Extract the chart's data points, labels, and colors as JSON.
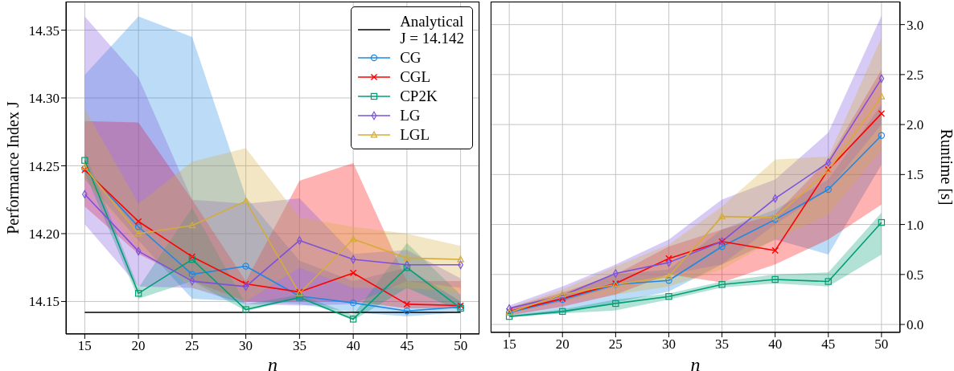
{
  "chart_data": [
    {
      "type": "line",
      "xlabel": "n",
      "ylabel": "Performance Index J",
      "x": [
        15,
        20,
        25,
        30,
        35,
        40,
        45,
        50
      ],
      "xlim": [
        13.25,
        51.75
      ],
      "xticks": [
        15,
        20,
        25,
        30,
        35,
        40,
        45,
        50
      ],
      "ylim": [
        14.126,
        14.371
      ],
      "yticks": [
        {
          "value": 14.15,
          "label": "14.15"
        },
        {
          "value": 14.2,
          "label": "14.20"
        },
        {
          "value": 14.25,
          "label": "14.25"
        },
        {
          "value": 14.3,
          "label": "14.30"
        },
        {
          "value": 14.35,
          "label": "14.35"
        }
      ],
      "grid": true,
      "legend": "top right",
      "series": [
        {
          "name": "Analytical\nJ = 14.142",
          "color": "#000000",
          "marker": "none",
          "values": [
            14.142,
            14.142,
            14.142,
            14.142,
            14.142,
            14.142,
            14.142,
            14.142
          ]
        },
        {
          "name": "CG",
          "color": "#1e88e5",
          "marker": "circle",
          "values": [
            14.248,
            14.205,
            14.17,
            14.176,
            14.154,
            14.149,
            14.143,
            14.146
          ],
          "lower": [
            14.24,
            14.195,
            14.152,
            14.15,
            14.148,
            14.142,
            14.139,
            14.142
          ],
          "upper": [
            14.317,
            14.36,
            14.345,
            14.227,
            14.18,
            14.165,
            14.175,
            14.15
          ]
        },
        {
          "name": "CGL",
          "color": "#ff0000",
          "marker": "cross",
          "values": [
            14.247,
            14.209,
            14.183,
            14.163,
            14.157,
            14.171,
            14.148,
            14.147
          ],
          "lower": [
            14.22,
            14.185,
            14.165,
            14.15,
            14.15,
            14.15,
            14.145,
            14.145
          ],
          "upper": [
            14.283,
            14.282,
            14.225,
            14.165,
            14.239,
            14.252,
            14.165,
            14.165
          ]
        },
        {
          "name": "CP2K",
          "color": "#009e73",
          "marker": "square",
          "values": [
            14.254,
            14.156,
            14.181,
            14.144,
            14.153,
            14.137,
            14.175,
            14.145
          ],
          "lower": [
            14.245,
            14.152,
            14.165,
            14.143,
            14.152,
            14.136,
            14.16,
            14.143
          ],
          "upper": [
            14.26,
            14.16,
            14.219,
            14.148,
            14.155,
            14.14,
            14.193,
            14.155
          ]
        },
        {
          "name": "LG",
          "color": "#7b52dd",
          "marker": "diamond",
          "values": [
            14.229,
            14.187,
            14.165,
            14.161,
            14.195,
            14.181,
            14.177,
            14.177
          ],
          "lower": [
            14.207,
            14.161,
            14.16,
            14.148,
            14.147,
            14.148,
            14.165,
            14.16
          ],
          "upper": [
            14.36,
            14.315,
            14.225,
            14.222,
            14.226,
            14.185,
            14.188,
            14.167
          ]
        },
        {
          "name": "LGL",
          "color": "#d4ac3a",
          "marker": "triangle",
          "values": [
            14.249,
            14.2,
            14.206,
            14.224,
            14.156,
            14.196,
            14.182,
            14.181
          ],
          "lower": [
            14.24,
            14.19,
            14.16,
            14.15,
            14.175,
            14.16,
            14.16,
            14.157
          ],
          "upper": [
            14.292,
            14.222,
            14.253,
            14.263,
            14.212,
            14.205,
            14.2,
            14.191
          ]
        }
      ]
    },
    {
      "type": "line",
      "xlabel": "n",
      "y2label": "Runtime [s]",
      "x": [
        15,
        20,
        25,
        30,
        35,
        40,
        45,
        50
      ],
      "xlim": [
        13.25,
        51.75
      ],
      "xticks": [
        15,
        20,
        25,
        30,
        35,
        40,
        45,
        50
      ],
      "y2lim": [
        -0.08,
        3.23
      ],
      "y2ticks": [
        {
          "value": 0,
          "label": "0.0"
        },
        {
          "value": 0.5,
          "label": "0.5"
        },
        {
          "value": 1,
          "label": "1.0"
        },
        {
          "value": 1.5,
          "label": "1.5"
        },
        {
          "value": 2,
          "label": "2.0"
        },
        {
          "value": 2.5,
          "label": "2.5"
        },
        {
          "value": 3,
          "label": "3.0"
        }
      ],
      "grid": true,
      "series": [
        {
          "color": "#1e88e5",
          "marker": "circle",
          "axis": "y2",
          "values": [
            0.12,
            0.25,
            0.4,
            0.44,
            0.78,
            1.05,
            1.35,
            1.89
          ],
          "lower": [
            0.09,
            0.11,
            0.22,
            0.33,
            0.6,
            0.85,
            0.7,
            1.6
          ],
          "upper": [
            0.14,
            0.3,
            0.5,
            0.55,
            0.95,
            1.15,
            1.45,
            2.2
          ]
        },
        {
          "color": "#ff0000",
          "marker": "cross",
          "axis": "y2",
          "values": [
            0.13,
            0.26,
            0.41,
            0.66,
            0.83,
            0.74,
            1.55,
            2.11
          ],
          "lower": [
            0.09,
            0.18,
            0.3,
            0.5,
            0.42,
            0.6,
            0.85,
            1.2
          ],
          "upper": [
            0.17,
            0.32,
            0.5,
            0.78,
            0.95,
            1.1,
            1.65,
            2.55
          ]
        },
        {
          "color": "#009e73",
          "marker": "square",
          "axis": "y2",
          "values": [
            0.08,
            0.13,
            0.21,
            0.28,
            0.4,
            0.45,
            0.43,
            1.02
          ],
          "lower": [
            0.07,
            0.11,
            0.14,
            0.25,
            0.37,
            0.41,
            0.38,
            0.7
          ],
          "upper": [
            0.09,
            0.15,
            0.25,
            0.31,
            0.43,
            0.5,
            0.52,
            1.12
          ]
        },
        {
          "color": "#7b52dd",
          "marker": "diamond",
          "axis": "y2",
          "values": [
            0.16,
            0.29,
            0.51,
            0.62,
            0.83,
            1.26,
            1.62,
            2.46
          ],
          "lower": [
            0.12,
            0.23,
            0.38,
            0.5,
            0.6,
            1.0,
            1.35,
            2.0
          ],
          "upper": [
            0.19,
            0.38,
            0.6,
            0.85,
            1.25,
            1.45,
            1.92,
            3.09
          ]
        },
        {
          "color": "#d4ac3a",
          "marker": "triangle",
          "axis": "y2",
          "values": [
            0.12,
            0.3,
            0.4,
            0.48,
            1.08,
            1.07,
            1.54,
            2.28
          ],
          "lower": [
            0.1,
            0.24,
            0.3,
            0.38,
            0.55,
            0.85,
            1.1,
            1.75
          ],
          "upper": [
            0.17,
            0.35,
            0.58,
            0.8,
            1.18,
            1.65,
            1.68,
            2.87
          ]
        }
      ]
    }
  ]
}
